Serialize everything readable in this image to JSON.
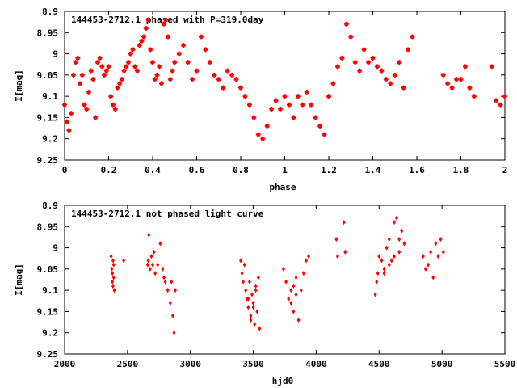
{
  "chart_data": [
    {
      "type": "scatter",
      "title": "144453-2712.1 phased with P=319.0day",
      "xlabel": "phase",
      "ylabel": "I[mag]",
      "xlim": [
        0,
        2
      ],
      "ylim": [
        9.25,
        8.9
      ],
      "y_inverted": true,
      "xticks": [
        0,
        0.2,
        0.4,
        0.6,
        0.8,
        1,
        1.2,
        1.4,
        1.6,
        1.8,
        2
      ],
      "yticks": [
        8.9,
        8.95,
        9,
        9.05,
        9.1,
        9.15,
        9.2,
        9.25
      ],
      "xtick_labels": [
        "0",
        "0.2",
        "0.4",
        "0.6",
        "0.8",
        "1",
        "1.2",
        "1.4",
        "1.6",
        "1.8",
        "2"
      ],
      "ytick_labels": [
        "8.9",
        "8.95",
        "9",
        "9.05",
        "9.1",
        "9.15",
        "9.2",
        "9.25"
      ],
      "grid": false,
      "marker": "cross",
      "color": "#ff0000",
      "series": [
        {
          "x": [
            0.0,
            0.01,
            0.02,
            0.03,
            0.04,
            0.05,
            0.06,
            0.07,
            0.08,
            0.09,
            0.1,
            0.11,
            0.12,
            0.13,
            0.14,
            0.15,
            0.16,
            0.17,
            0.18,
            0.19,
            0.2,
            0.21,
            0.22,
            0.23,
            0.24,
            0.25,
            0.26,
            0.27,
            0.28,
            0.29,
            0.3,
            0.31,
            0.32,
            0.33,
            0.34,
            0.35,
            0.36,
            0.37,
            0.38,
            0.39,
            0.4,
            0.41,
            0.42,
            0.43,
            0.44,
            0.45,
            0.46,
            0.47,
            0.48,
            0.49,
            0.5,
            0.52,
            0.54,
            0.56,
            0.58,
            0.6,
            0.62,
            0.64,
            0.66,
            0.68,
            0.7,
            0.72,
            0.74,
            0.76,
            0.78,
            0.8,
            0.82,
            0.84,
            0.86,
            0.88,
            0.9,
            0.92,
            0.94,
            0.96,
            0.98,
            1.0,
            1.02,
            1.04,
            1.06,
            1.08,
            1.1,
            1.12,
            1.14,
            1.16,
            1.18,
            1.2,
            1.22,
            1.24,
            1.26,
            1.28,
            1.3,
            1.32,
            1.34,
            1.36,
            1.38,
            1.4,
            1.42,
            1.44,
            1.46,
            1.48,
            1.5,
            1.52,
            1.54,
            1.56,
            1.58,
            1.72,
            1.74,
            1.76,
            1.78,
            1.8,
            1.82,
            1.84,
            1.86,
            1.94,
            1.96,
            1.98,
            2.0
          ],
          "y": [
            9.12,
            9.16,
            9.18,
            9.14,
            9.05,
            9.02,
            9.01,
            9.07,
            9.05,
            9.12,
            9.13,
            9.09,
            9.04,
            9.06,
            9.15,
            9.02,
            9.01,
            9.03,
            9.05,
            9.04,
            9.03,
            9.1,
            9.12,
            9.13,
            9.08,
            9.07,
            9.06,
            9.04,
            9.03,
            9.02,
            9.0,
            8.99,
            9.03,
            9.04,
            8.98,
            8.97,
            8.96,
            8.94,
            8.92,
            8.99,
            9.02,
            9.06,
            9.05,
            9.03,
            9.07,
            8.93,
            8.92,
            8.96,
            9.06,
            9.04,
            9.02,
            9.0,
            8.98,
            9.02,
            9.06,
            9.04,
            8.96,
            8.99,
            9.02,
            9.05,
            9.06,
            9.08,
            9.04,
            9.05,
            9.06,
            9.08,
            9.1,
            9.12,
            9.15,
            9.19,
            9.2,
            9.17,
            9.13,
            9.11,
            9.13,
            9.1,
            9.12,
            9.15,
            9.1,
            9.12,
            9.09,
            9.12,
            9.15,
            9.17,
            9.19,
            9.1,
            9.07,
            9.03,
            9.01,
            8.93,
            8.96,
            9.02,
            9.04,
            8.99,
            9.02,
            9.01,
            9.03,
            9.04,
            9.06,
            9.07,
            9.05,
            9.02,
            9.08,
            8.99,
            8.96,
            9.05,
            9.07,
            9.08,
            9.06,
            9.06,
            9.03,
            9.08,
            9.1,
            9.03,
            9.11,
            9.12,
            9.1
          ]
        }
      ]
    },
    {
      "type": "scatter",
      "title": "144453-2712.1 not phased light curve",
      "xlabel": "hjd0",
      "ylabel": "I[mag]",
      "xlim": [
        2000,
        5500
      ],
      "ylim": [
        9.25,
        8.9
      ],
      "y_inverted": true,
      "xticks": [
        2000,
        2500,
        3000,
        3500,
        4000,
        4500,
        5000,
        5500
      ],
      "yticks": [
        8.9,
        8.95,
        9,
        9.05,
        9.1,
        9.15,
        9.2,
        9.25
      ],
      "xtick_labels": [
        "2000",
        "2500",
        "3000",
        "3500",
        "4000",
        "4500",
        "5000",
        "5500"
      ],
      "ytick_labels": [
        "8.9",
        "8.95",
        "9",
        "9.05",
        "9.1",
        "9.15",
        "9.2",
        "9.25"
      ],
      "grid": false,
      "marker": "diamond",
      "color": "#ff0000",
      "series": [
        {
          "x": [
            2370,
            2375,
            2380,
            2385,
            2390,
            2395,
            2380,
            2385,
            2390,
            2470,
            2660,
            2665,
            2670,
            2680,
            2690,
            2700,
            2710,
            2720,
            2740,
            2760,
            2780,
            2790,
            2800,
            2820,
            2840,
            2860,
            2870,
            2880,
            2850,
            3400,
            3410,
            3420,
            3430,
            3440,
            3450,
            3460,
            3470,
            3480,
            3490,
            3500,
            3510,
            3520,
            3530,
            3540,
            3550,
            3460,
            3480,
            3500,
            3520,
            3740,
            3760,
            3780,
            3800,
            3820,
            3840,
            3860,
            3880,
            3900,
            3920,
            3940,
            3800,
            3820,
            3840,
            4160,
            4170,
            4220,
            4230,
            4470,
            4480,
            4490,
            4500,
            4520,
            4540,
            4560,
            4580,
            4600,
            4620,
            4640,
            4660,
            4680,
            4700,
            4540,
            4580,
            4620,
            4660,
            4850,
            4870,
            4890,
            4910,
            4930,
            4950,
            4970,
            4990,
            5010
          ],
          "y": [
            9.02,
            9.05,
            9.08,
            9.03,
            9.07,
            9.1,
            9.06,
            9.09,
            9.04,
            9.03,
            9.04,
            9.03,
            8.97,
            9.05,
            9.02,
            9.04,
            9.01,
            9.06,
            9.04,
            8.99,
            9.05,
            9.07,
            9.08,
            9.1,
            9.13,
            9.16,
            9.2,
            9.1,
            9.08,
            9.03,
            9.06,
            9.08,
            9.04,
            9.1,
            9.12,
            9.14,
            9.08,
            9.16,
            9.11,
            9.13,
            9.18,
            9.09,
            9.15,
            9.07,
            9.19,
            9.12,
            9.17,
            9.14,
            9.1,
            9.05,
            9.08,
            9.12,
            9.1,
            9.15,
            9.11,
            9.17,
            9.1,
            9.06,
            9.03,
            9.02,
            9.13,
            9.09,
            9.07,
            8.98,
            9.02,
            8.94,
            9.01,
            9.11,
            9.08,
            9.06,
            9.02,
            9.03,
            9.05,
            9.0,
            8.98,
            9.03,
            8.94,
            8.93,
            9.01,
            8.96,
            8.99,
            9.06,
            9.04,
            9.02,
            8.98,
            9.02,
            9.05,
            9.04,
            9.01,
            9.07,
            8.99,
            9.02,
            8.98,
            9.01
          ]
        }
      ]
    }
  ]
}
